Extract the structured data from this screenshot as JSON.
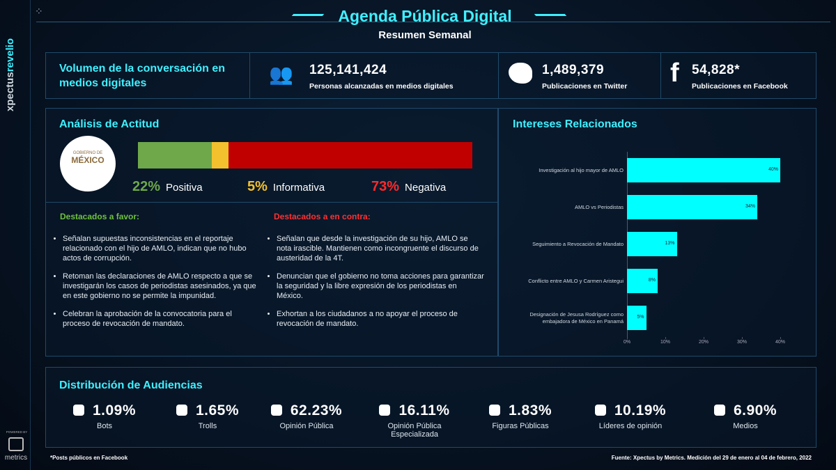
{
  "brand": {
    "part1": "xpectus",
    "part2": "revelio"
  },
  "powered_by": {
    "label": "POWERED BY",
    "name": "metrics"
  },
  "header": {
    "title": "Agenda Pública Digital",
    "subtitle": "Resumen Semanal"
  },
  "volume": {
    "title": "Volumen de la conversación en medios digitales",
    "stats": [
      {
        "value": "125,141,424",
        "label": "Personas alcanzadas en medios digitales"
      },
      {
        "value": "1,489,379",
        "label": "Publicaciones en Twitter"
      },
      {
        "value": "54,828*",
        "label": "Publicaciones en Facebook"
      }
    ]
  },
  "attitude": {
    "title": "Análisis de Actitud",
    "logo": {
      "line1": "GOBIERNO DE",
      "line2": "MÉXICO"
    },
    "segments": [
      {
        "name": "Positiva",
        "value": 22,
        "value_label": "22%",
        "color": "#6ea84a"
      },
      {
        "name": "Informativa",
        "value": 5,
        "value_label": "5%",
        "color": "#f3c12d"
      },
      {
        "name": "Negativa",
        "value": 73,
        "value_label": "73%",
        "color": "#c00000"
      }
    ]
  },
  "favor": {
    "title": "Destacados a favor:",
    "items": [
      "Señalan supuestas inconsistencias en el reportaje relacionado con el hijo de AMLO, indican que no hubo actos de corrupción.",
      "Retoman las declaraciones de AMLO respecto a que se investigarán los casos de periodistas asesinados, ya que en este gobierno no se permite la impunidad.",
      "Celebran la aprobación de la convocatoria para el proceso de revocación de mandato."
    ]
  },
  "contra": {
    "title": "Destacados a en contra:",
    "items": [
      "Señalan que desde la investigación de su hijo, AMLO se nota irascible. Mantienen como incongruente el discurso de austeridad de la 4T.",
      "Denuncian que el gobierno no toma acciones para garantizar la seguridad y la libre expresión de los periodistas en México.",
      "Exhortan a los ciudadanos a no apoyar el proceso de revocación de mandato."
    ]
  },
  "interests": {
    "title": "Intereses Relacionados",
    "chart_data": {
      "type": "bar",
      "orientation": "horizontal",
      "categories": [
        "Investigación al hijo mayor de AMLO",
        "AMLO vs Periodistas",
        "Seguimiento a Revocación de Mandato",
        "Conflicto entre AMLO y Carmen Aristegui",
        "Designación de Jesusa Rodríguez como embajadora de México en Panamá"
      ],
      "values": [
        40,
        34,
        13,
        8,
        5
      ],
      "value_labels": [
        "40%",
        "34%",
        "13%",
        "8%",
        "5%"
      ],
      "color": "#00ffff",
      "xlim": [
        0,
        40
      ],
      "xticks": [
        {
          "value": 0,
          "label": "0%"
        },
        {
          "value": 10,
          "label": "10%"
        },
        {
          "value": 20,
          "label": "20%"
        },
        {
          "value": 30,
          "label": "30%"
        },
        {
          "value": 40,
          "label": "40%"
        }
      ]
    }
  },
  "audiences": {
    "title": "Distribución de Audiencias",
    "items": [
      {
        "value": "1.09%",
        "label": "Bots"
      },
      {
        "value": "1.65%",
        "label": "Trolls"
      },
      {
        "value": "62.23%",
        "label": "Opinión Pública"
      },
      {
        "value": "16.11%",
        "label": "Opinión Pública Especializada"
      },
      {
        "value": "1.83%",
        "label": "Figuras Públicas"
      },
      {
        "value": "10.19%",
        "label": "Líderes de opinión"
      },
      {
        "value": "6.90%",
        "label": "Medios"
      }
    ]
  },
  "footer": {
    "note": "*Posts públicos en Facebook",
    "source": "Fuente: Xpectus by Metrics. Medición del 29 de enero al 04 de febrero, 2022"
  }
}
